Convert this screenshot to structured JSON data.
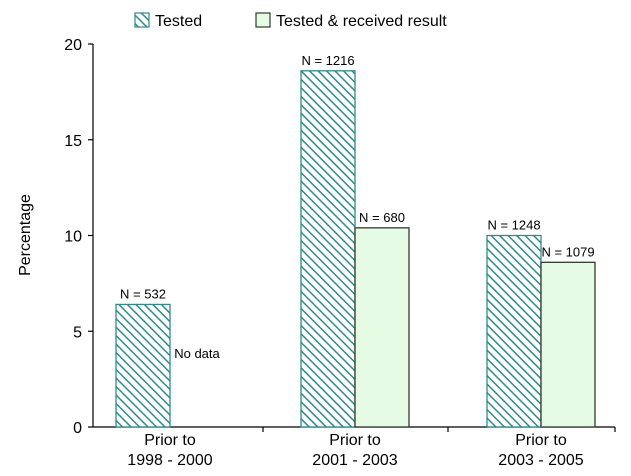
{
  "chart_data": {
    "type": "bar",
    "title": "",
    "xlabel": "",
    "ylabel": "Percentage",
    "ylim": [
      0,
      20
    ],
    "yticks": [
      "0",
      "5",
      "10",
      "15",
      "20"
    ],
    "grid": false,
    "legend_position": "top",
    "categories": [
      [
        "Prior to",
        "1998 - 2000"
      ],
      [
        "Prior to",
        "2001 - 2003"
      ],
      [
        "Prior to",
        "2003 - 2005"
      ]
    ],
    "series": [
      {
        "name": "Tested",
        "values": [
          6.4,
          18.6,
          10.0
        ],
        "labels": [
          "N = 532",
          "N = 1216",
          "N = 1248"
        ],
        "color": "#2e8b8b",
        "fill": "#ffffff",
        "pattern": "diagonal-hatch"
      },
      {
        "name": "Tested & received result",
        "values": [
          null,
          10.4,
          8.6
        ],
        "labels": [
          "",
          "N = 680",
          "N = 1079"
        ],
        "color": "#2f3b2f",
        "fill": "#e6fbe3",
        "pattern": "solid"
      }
    ],
    "annotations": [
      {
        "category_index": 0,
        "series_index": 1,
        "text": "No data"
      }
    ]
  }
}
